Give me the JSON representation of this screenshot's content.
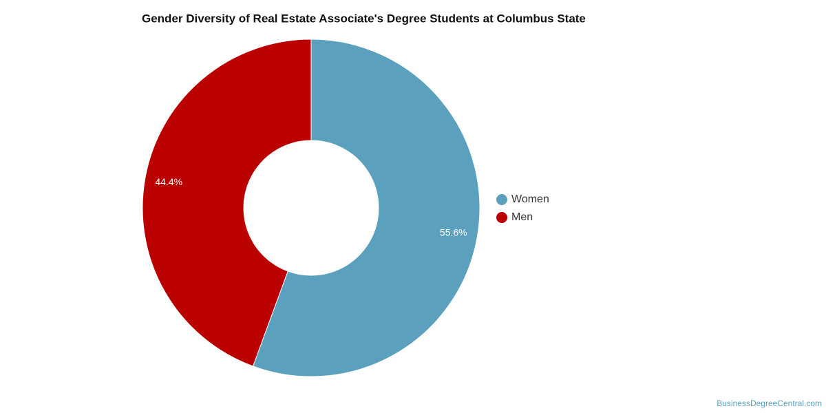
{
  "chart_data": {
    "type": "pie",
    "title": "Gender Diversity of Real Estate Associate's Degree Students at Columbus State",
    "categories": [
      "Women",
      "Men"
    ],
    "values": [
      55.6,
      44.4
    ],
    "value_labels": [
      "55.6%",
      "44.4%"
    ],
    "colors": [
      "#5ba1be",
      "#bb0000"
    ],
    "donut": true,
    "legend": "right",
    "credit": "BusinessDegreeCentral.com"
  }
}
